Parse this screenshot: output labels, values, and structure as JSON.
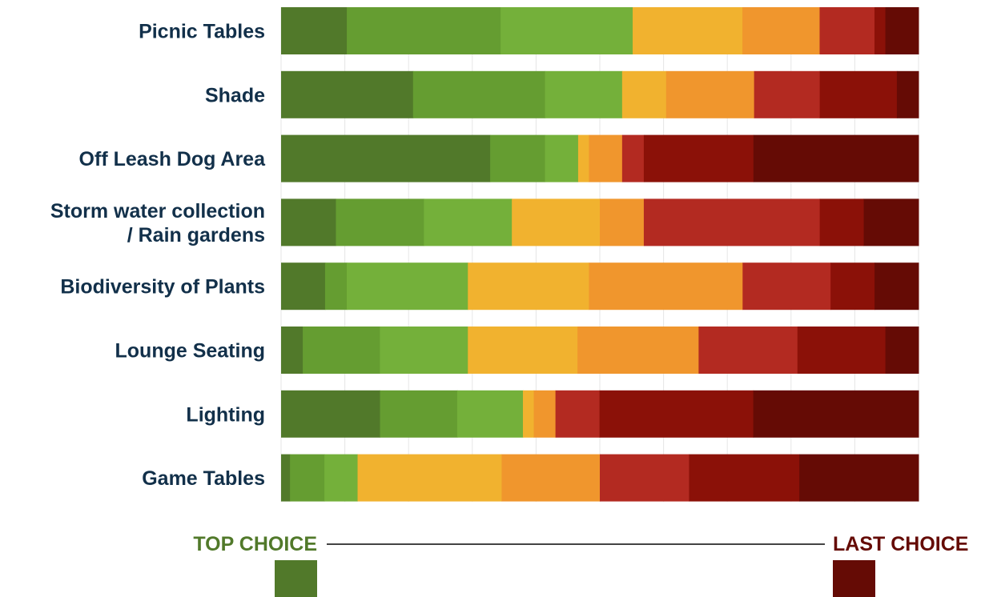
{
  "chart_data": {
    "type": "bar",
    "orientation": "horizontal",
    "stacked": true,
    "normalized": true,
    "categories": [
      "Picnic Tables",
      "Shade",
      "Off Leash Dog Area",
      "Storm water collection / Rain gardens",
      "Biodiversity of Plants",
      "Lounge Seating",
      "Lighting",
      "Game Tables"
    ],
    "category_lines": [
      [
        "Picnic Tables"
      ],
      [
        "Shade"
      ],
      [
        "Off Leash Dog Area"
      ],
      [
        "Storm water collection",
        "/ Rain gardens"
      ],
      [
        "Biodiversity of Plants"
      ],
      [
        "Lounge Seating"
      ],
      [
        "Lighting"
      ],
      [
        "Game Tables"
      ]
    ],
    "rank_colors": [
      "#51792a",
      "#659d31",
      "#74b03a",
      "#f1b22f",
      "#f0962d",
      "#b32a21",
      "#8b1108",
      "#650b05"
    ],
    "values_pct": [
      [
        10.3,
        24.1,
        20.7,
        17.2,
        12.1,
        8.6,
        1.7,
        5.2
      ],
      [
        20.7,
        20.7,
        12.1,
        6.9,
        13.8,
        10.3,
        12.1,
        3.4
      ],
      [
        32.8,
        8.6,
        5.2,
        1.7,
        5.2,
        3.4,
        17.2,
        25.9
      ],
      [
        8.6,
        13.8,
        13.8,
        13.8,
        6.9,
        27.6,
        6.9,
        8.6
      ],
      [
        6.9,
        3.4,
        19.0,
        19.0,
        24.1,
        13.8,
        6.9,
        6.9
      ],
      [
        3.4,
        12.1,
        13.8,
        17.2,
        19.0,
        15.5,
        13.8,
        5.2
      ],
      [
        15.5,
        12.1,
        10.3,
        1.7,
        3.4,
        6.9,
        24.1,
        25.9
      ],
      [
        1.4,
        5.4,
        5.2,
        22.6,
        15.4,
        14.0,
        17.3,
        18.7
      ]
    ],
    "xlim": [
      0,
      100
    ],
    "grid": true,
    "legend": {
      "top_label": "TOP CHOICE",
      "last_label": "LAST CHOICE",
      "top_color": "#51792a",
      "last_color": "#650b05",
      "placement": "bottom"
    }
  }
}
